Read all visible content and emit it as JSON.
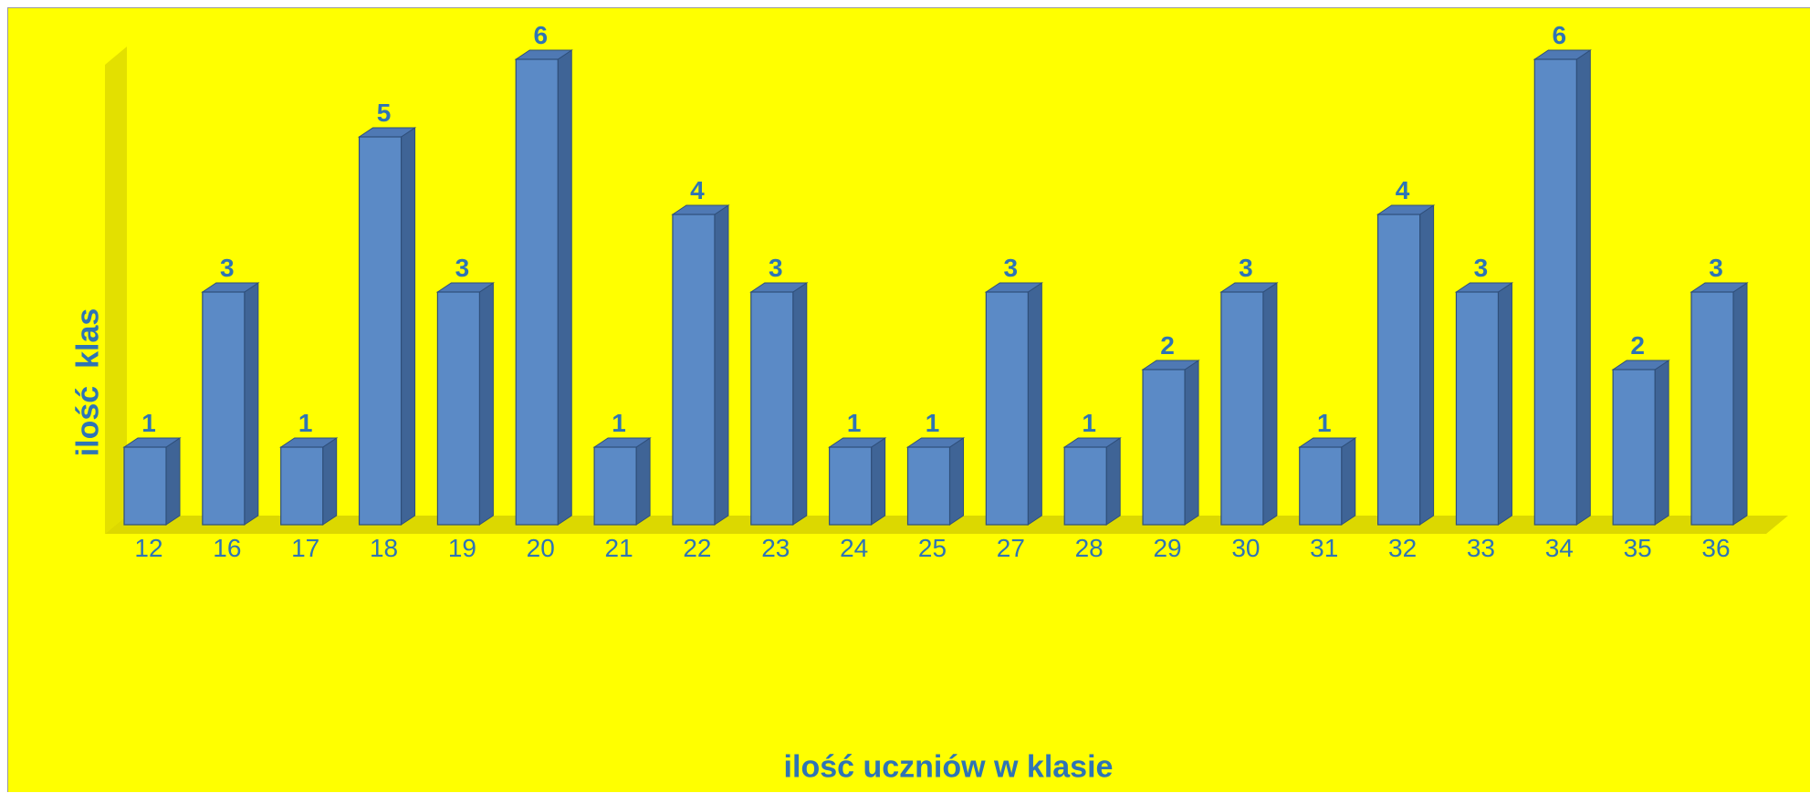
{
  "chart_data": {
    "type": "bar",
    "title": "",
    "xlabel": "ilość uczniów w klasie",
    "ylabel": "ilość  klas",
    "categories": [
      "12",
      "16",
      "17",
      "18",
      "19",
      "20",
      "21",
      "22",
      "23",
      "24",
      "25",
      "27",
      "28",
      "29",
      "30",
      "31",
      "32",
      "33",
      "34",
      "35",
      "36"
    ],
    "values": [
      1,
      3,
      1,
      5,
      3,
      6,
      1,
      4,
      3,
      1,
      1,
      3,
      1,
      2,
      3,
      1,
      4,
      3,
      6,
      2,
      3
    ],
    "ylim": [
      0,
      6
    ],
    "grid": false,
    "legend": "none",
    "data_labels": true,
    "style": "3d-column"
  },
  "colors": {
    "background": "#ffff00",
    "bar_front": "#5b8ac6",
    "bar_side": "#3f6496",
    "bar_top": "#4f79b4",
    "bar_edge": "#2f4f7a",
    "text": "#2e74b5",
    "wall": "#e3e000",
    "floor": "#dcd800"
  }
}
